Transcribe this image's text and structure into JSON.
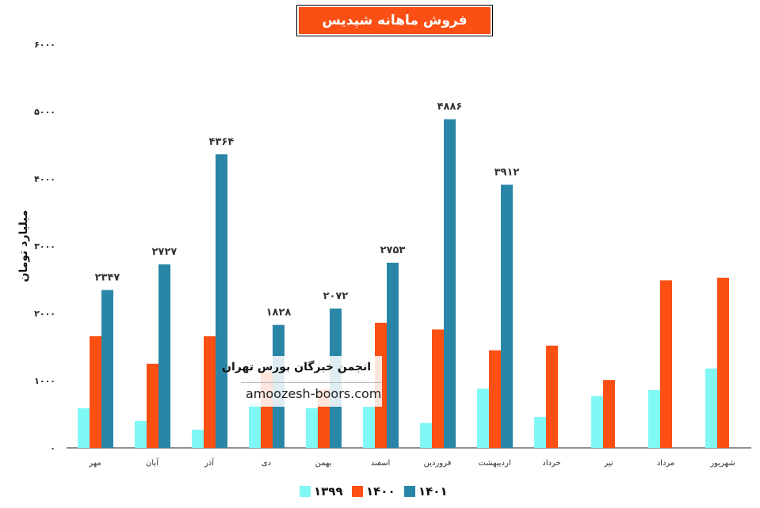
{
  "chart_data": {
    "type": "bar",
    "title": "فروش ماهانه شپدیس",
    "ylabel": "میلیارد تومان",
    "ylim": [
      0,
      6000
    ],
    "yticks": [
      "۰",
      "۱۰۰۰",
      "۲۰۰۰",
      "۳۰۰۰",
      "۴۰۰۰",
      "۵۰۰۰",
      "۶۰۰۰"
    ],
    "ytick_values": [
      0,
      1000,
      2000,
      3000,
      4000,
      5000,
      6000
    ],
    "categories": [
      "مهر",
      "آبان",
      "آذر",
      "دی",
      "بهمن",
      "اسفند",
      "فروردین",
      "اردیبهشت",
      "خرداد",
      "تیر",
      "مرداد",
      "شهریور"
    ],
    "series": [
      {
        "name": "۱۳۹۹",
        "color": "#80f8f6",
        "values": [
          590,
          400,
          270,
          670,
          590,
          610,
          370,
          880,
          460,
          770,
          860,
          1180
        ]
      },
      {
        "name": "۱۴۰۰",
        "color": "#fb4f14",
        "values": [
          1660,
          1250,
          1660,
          1130,
          870,
          1860,
          1760,
          1450,
          1520,
          1010,
          2490,
          2530
        ]
      },
      {
        "name": "۱۴۰۱",
        "color": "#2a86a6",
        "values": [
          2347,
          2727,
          4364,
          1828,
          2072,
          2753,
          4886,
          3912,
          null,
          null,
          null,
          null
        ],
        "labels": [
          "۲۳۴۷",
          "۲۷۲۷",
          "۴۳۶۴",
          "۱۸۲۸",
          "۲۰۷۲",
          "۲۷۵۳",
          "۴۸۸۶",
          "۳۹۱۲",
          "",
          "",
          "",
          ""
        ]
      }
    ],
    "legend_position": "bottom",
    "grid": false
  },
  "watermark": {
    "title": "انجمن خبرگان بورس تهران",
    "url": "amoozesh-boors.com"
  }
}
